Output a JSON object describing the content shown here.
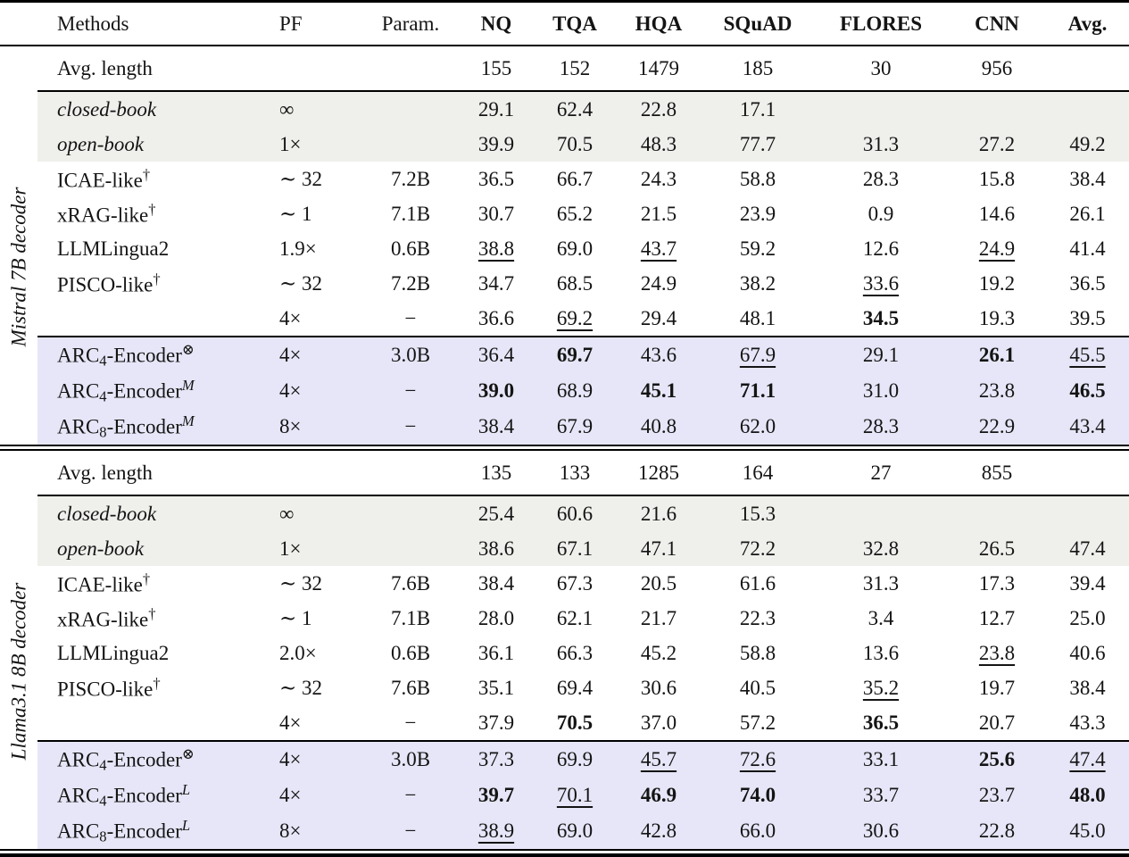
{
  "colors": {
    "highlight_gray": "#efefec",
    "highlight_lavender": "#e6e6f8",
    "text": "#141414",
    "rule": "#000000"
  },
  "table": {
    "columns": [
      {
        "key": "methods",
        "label": "Methods",
        "bold": false,
        "align": "left"
      },
      {
        "key": "pf",
        "label": "PF",
        "bold": false,
        "align": "left"
      },
      {
        "key": "param",
        "label": "Param.",
        "bold": false,
        "align": "center"
      },
      {
        "key": "nq",
        "label": "NQ",
        "bold": true,
        "align": "center"
      },
      {
        "key": "tqa",
        "label": "TQA",
        "bold": true,
        "align": "center"
      },
      {
        "key": "hqa",
        "label": "HQA",
        "bold": true,
        "align": "center"
      },
      {
        "key": "squad",
        "label": "SQuAD",
        "bold": true,
        "align": "center"
      },
      {
        "key": "flores",
        "label": "FLORES",
        "bold": true,
        "align": "center"
      },
      {
        "key": "cnn",
        "label": "CNN",
        "bold": true,
        "align": "center"
      },
      {
        "key": "avg",
        "label": "Avg.",
        "bold": true,
        "align": "center"
      }
    ],
    "sections": [
      {
        "group_label": "Mistral 7B decoder",
        "avg_row": {
          "label": "Avg. length",
          "values": [
            "155",
            "152",
            "1479",
            "185",
            "30",
            "956",
            ""
          ]
        },
        "rows": [
          {
            "bg": "gray",
            "italic": true,
            "method": [
              {
                "t": "closed-book"
              }
            ],
            "pf": "∞",
            "param": "",
            "cells": [
              "29.1",
              "62.4",
              "22.8",
              "17.1",
              "",
              "",
              ""
            ]
          },
          {
            "bg": "gray",
            "italic": true,
            "method": [
              {
                "t": "open-book"
              }
            ],
            "pf": "1×",
            "param": "",
            "cells": [
              "39.9",
              "70.5",
              "48.3",
              "77.7",
              "31.3",
              "27.2",
              "49.2"
            ]
          },
          {
            "bg": "white",
            "italic": false,
            "method": [
              {
                "t": "ICAE-like"
              },
              {
                "sup": "†"
              }
            ],
            "pf": "∼ 32",
            "param": "7.2B",
            "cells": [
              "36.5",
              "66.7",
              "24.3",
              "58.8",
              "28.3",
              "15.8",
              "38.4"
            ]
          },
          {
            "bg": "white",
            "italic": false,
            "method": [
              {
                "t": "xRAG-like"
              },
              {
                "sup": "†"
              }
            ],
            "pf": "∼ 1",
            "param": "7.1B",
            "cells": [
              "30.7",
              "65.2",
              "21.5",
              "23.9",
              "0.9",
              "14.6",
              "26.1"
            ]
          },
          {
            "bg": "white",
            "italic": false,
            "method": [
              {
                "t": "LLMLingua2"
              }
            ],
            "pf": "1.9×",
            "param": "0.6B",
            "cells": [
              {
                "v": "38.8",
                "s": "u"
              },
              "69.0",
              {
                "v": "43.7",
                "s": "u"
              },
              "59.2",
              "12.6",
              {
                "v": "24.9",
                "s": "u"
              },
              "41.4"
            ]
          },
          {
            "bg": "white",
            "italic": false,
            "method": [
              {
                "t": "PISCO-like"
              },
              {
                "sup": "†"
              }
            ],
            "pf": "∼ 32",
            "param": "7.2B",
            "cells": [
              "34.7",
              "68.5",
              "24.9",
              "38.2",
              {
                "v": "33.6",
                "s": "u"
              },
              "19.2",
              "36.5"
            ]
          },
          {
            "bg": "white",
            "italic": false,
            "method": [],
            "pf": "4×",
            "param": "−",
            "cells": [
              "36.6",
              {
                "v": "69.2",
                "s": "u"
              },
              "29.4",
              "48.1",
              {
                "v": "34.5",
                "s": "b"
              },
              "19.3",
              "39.5"
            ]
          }
        ],
        "arc_rows": [
          {
            "bg": "lav",
            "italic": false,
            "method": [
              {
                "t": "ARC"
              },
              {
                "sub": "4"
              },
              {
                "t": "-Encoder"
              },
              {
                "sup": "⊗"
              }
            ],
            "pf": "4×",
            "param": "3.0B",
            "cells": [
              "36.4",
              {
                "v": "69.7",
                "s": "b"
              },
              "43.6",
              {
                "v": "67.9",
                "s": "u"
              },
              "29.1",
              {
                "v": "26.1",
                "s": "b"
              },
              {
                "v": "45.5",
                "s": "u"
              }
            ]
          },
          {
            "bg": "lav",
            "italic": false,
            "method": [
              {
                "t": "ARC"
              },
              {
                "sub": "4"
              },
              {
                "t": "-Encoder"
              },
              {
                "sup": "M",
                "i": true
              }
            ],
            "pf": "4×",
            "param": "−",
            "cells": [
              {
                "v": "39.0",
                "s": "b"
              },
              "68.9",
              {
                "v": "45.1",
                "s": "b"
              },
              {
                "v": "71.1",
                "s": "b"
              },
              "31.0",
              "23.8",
              {
                "v": "46.5",
                "s": "b"
              }
            ]
          },
          {
            "bg": "lav",
            "italic": false,
            "method": [
              {
                "t": "ARC"
              },
              {
                "sub": "8"
              },
              {
                "t": "-Encoder"
              },
              {
                "sup": "M",
                "i": true
              }
            ],
            "pf": "8×",
            "param": "−",
            "cells": [
              "38.4",
              "67.9",
              "40.8",
              "62.0",
              "28.3",
              "22.9",
              "43.4"
            ]
          }
        ]
      },
      {
        "group_label": "Llama3.1 8B decoder",
        "avg_row": {
          "label": "Avg. length",
          "values": [
            "135",
            "133",
            "1285",
            "164",
            "27",
            "855",
            ""
          ]
        },
        "rows": [
          {
            "bg": "gray",
            "italic": true,
            "method": [
              {
                "t": "closed-book"
              }
            ],
            "pf": "∞",
            "param": "",
            "cells": [
              "25.4",
              "60.6",
              "21.6",
              "15.3",
              "",
              "",
              ""
            ]
          },
          {
            "bg": "gray",
            "italic": true,
            "method": [
              {
                "t": "open-book"
              }
            ],
            "pf": "1×",
            "param": "",
            "cells": [
              "38.6",
              "67.1",
              "47.1",
              "72.2",
              "32.8",
              "26.5",
              "47.4"
            ]
          },
          {
            "bg": "white",
            "italic": false,
            "method": [
              {
                "t": "ICAE-like"
              },
              {
                "sup": "†"
              }
            ],
            "pf": "∼ 32",
            "param": "7.6B",
            "cells": [
              "38.4",
              "67.3",
              "20.5",
              "61.6",
              "31.3",
              "17.3",
              "39.4"
            ]
          },
          {
            "bg": "white",
            "italic": false,
            "method": [
              {
                "t": "xRAG-like"
              },
              {
                "sup": "†"
              }
            ],
            "pf": "∼ 1",
            "param": "7.1B",
            "cells": [
              "28.0",
              "62.1",
              "21.7",
              "22.3",
              "3.4",
              "12.7",
              "25.0"
            ]
          },
          {
            "bg": "white",
            "italic": false,
            "method": [
              {
                "t": "LLMLingua2"
              }
            ],
            "pf": "2.0×",
            "param": "0.6B",
            "cells": [
              "36.1",
              "66.3",
              "45.2",
              "58.8",
              "13.6",
              {
                "v": "23.8",
                "s": "u"
              },
              "40.6"
            ]
          },
          {
            "bg": "white",
            "italic": false,
            "method": [
              {
                "t": "PISCO-like"
              },
              {
                "sup": "†"
              }
            ],
            "pf": "∼ 32",
            "param": "7.6B",
            "cells": [
              "35.1",
              "69.4",
              "30.6",
              "40.5",
              {
                "v": "35.2",
                "s": "u"
              },
              "19.7",
              "38.4"
            ]
          },
          {
            "bg": "white",
            "italic": false,
            "method": [],
            "pf": "4×",
            "param": "−",
            "cells": [
              "37.9",
              {
                "v": "70.5",
                "s": "b"
              },
              "37.0",
              "57.2",
              {
                "v": "36.5",
                "s": "b"
              },
              "20.7",
              "43.3"
            ]
          }
        ],
        "arc_rows": [
          {
            "bg": "lav",
            "italic": false,
            "method": [
              {
                "t": "ARC"
              },
              {
                "sub": "4"
              },
              {
                "t": "-Encoder"
              },
              {
                "sup": "⊗"
              }
            ],
            "pf": "4×",
            "param": "3.0B",
            "cells": [
              "37.3",
              "69.9",
              {
                "v": "45.7",
                "s": "u"
              },
              {
                "v": "72.6",
                "s": "u"
              },
              "33.1",
              {
                "v": "25.6",
                "s": "b"
              },
              {
                "v": "47.4",
                "s": "u"
              }
            ]
          },
          {
            "bg": "lav",
            "italic": false,
            "method": [
              {
                "t": "ARC"
              },
              {
                "sub": "4"
              },
              {
                "t": "-Encoder"
              },
              {
                "sup": "L",
                "i": true
              }
            ],
            "pf": "4×",
            "param": "−",
            "cells": [
              {
                "v": "39.7",
                "s": "b"
              },
              {
                "v": "70.1",
                "s": "u"
              },
              {
                "v": "46.9",
                "s": "b"
              },
              {
                "v": "74.0",
                "s": "b"
              },
              "33.7",
              "23.7",
              {
                "v": "48.0",
                "s": "b"
              }
            ]
          },
          {
            "bg": "lav",
            "italic": false,
            "method": [
              {
                "t": "ARC"
              },
              {
                "sub": "8"
              },
              {
                "t": "-Encoder"
              },
              {
                "sup": "L",
                "i": true
              }
            ],
            "pf": "8×",
            "param": "−",
            "cells": [
              {
                "v": "38.9",
                "s": "u"
              },
              "69.0",
              "42.8",
              "66.0",
              "30.6",
              "22.8",
              "45.0"
            ]
          }
        ]
      }
    ]
  }
}
